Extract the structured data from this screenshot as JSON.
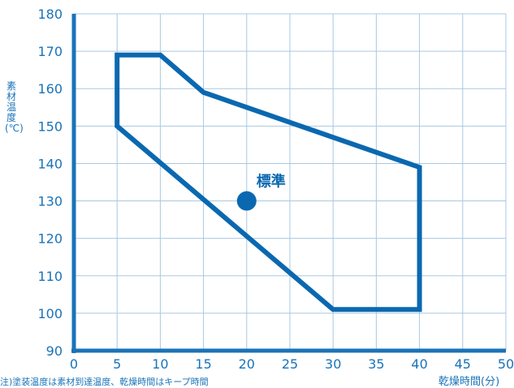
{
  "chart_data": {
    "type": "line",
    "ylabel": "素材温度(℃)",
    "xlabel": "乾燥時間(分)",
    "note": "注)塗装温度は素材到達温度、乾燥時間はキープ時間",
    "xlim": [
      0,
      50
    ],
    "ylim": [
      90,
      180
    ],
    "x_ticks": [
      0,
      5,
      10,
      15,
      20,
      25,
      30,
      35,
      40,
      45,
      50
    ],
    "y_ticks": [
      90,
      100,
      110,
      120,
      130,
      140,
      150,
      160,
      170,
      180
    ],
    "grid": true,
    "series": [
      {
        "closed": true,
        "color": "#0a68b0",
        "points": [
          [
            5,
            169
          ],
          [
            10,
            169
          ],
          [
            15,
            159
          ],
          [
            40,
            139
          ],
          [
            40,
            101
          ],
          [
            30,
            101
          ],
          [
            5,
            150
          ]
        ]
      }
    ],
    "markers": [
      {
        "label": "標準",
        "x": 20,
        "y": 130,
        "color": "#0a68b0"
      }
    ],
    "colors": {
      "axis": "#1a73b8",
      "grid": "#a9c8e3",
      "text": "#1a73b8",
      "series": "#0a68b0"
    }
  }
}
